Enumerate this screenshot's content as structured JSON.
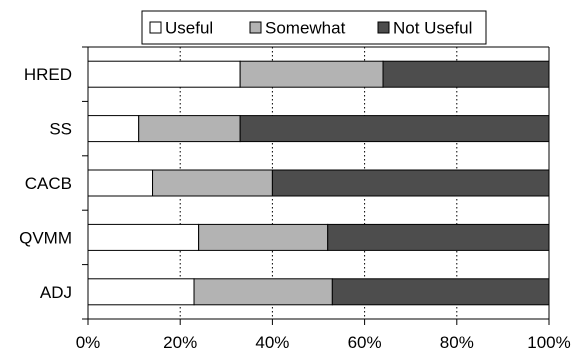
{
  "chart_data": {
    "type": "bar",
    "orientation": "horizontal",
    "stacked": true,
    "percent": true,
    "categories": [
      "HRED",
      "SS",
      "CACB",
      "QVMM",
      "ADJ"
    ],
    "series": [
      {
        "name": "Useful",
        "values": [
          33,
          11,
          14,
          24,
          23
        ],
        "color": "#ffffff"
      },
      {
        "name": "Somewhat",
        "values": [
          31,
          22,
          26,
          28,
          30
        ],
        "color": "#b3b3b3"
      },
      {
        "name": "Not Useful",
        "values": [
          36,
          67,
          60,
          48,
          47
        ],
        "color": "#4d4d4d"
      }
    ],
    "xlim": [
      0,
      100
    ],
    "xticks": [
      "0%",
      "20%",
      "40%",
      "60%",
      "80%",
      "100%"
    ],
    "grid": "vertical dotted",
    "legend": "top"
  }
}
